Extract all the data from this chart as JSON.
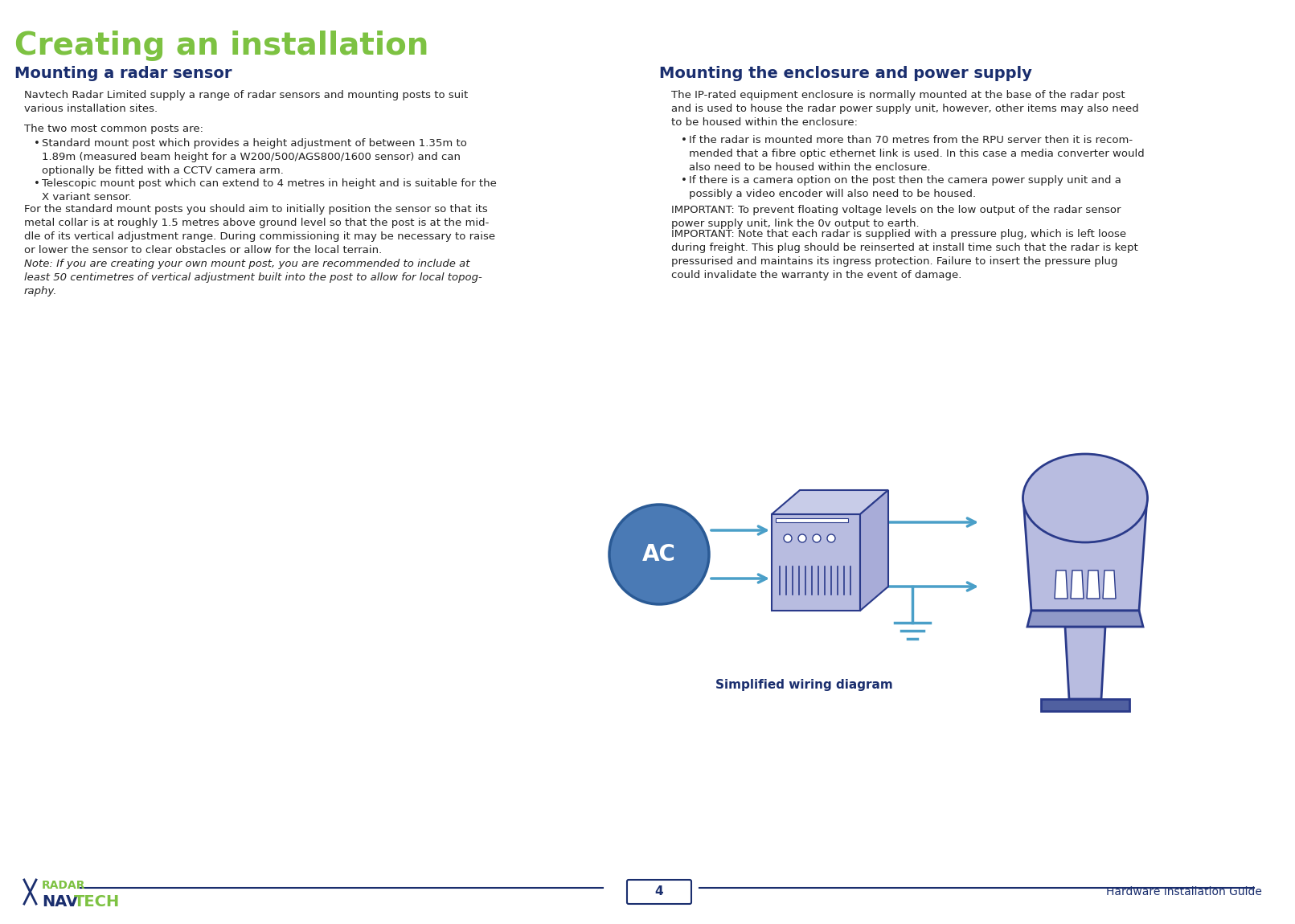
{
  "title": "Creating an installation",
  "title_color": "#7dc242",
  "title_fontsize": 28,
  "heading1": "Mounting a radar sensor",
  "heading2": "Mounting the enclosure and power supply",
  "heading_color": "#1a2e6e",
  "heading_fontsize": 14,
  "body_color": "#222222",
  "body_fontsize": 9.5,
  "bg_color": "#ffffff",
  "footer_line_color": "#1a2e6e",
  "footer_page_num": "4",
  "footer_right_text": "Hardware Installation Guide",
  "footer_color": "#1a2e6e",
  "diagram_caption": "Simplified wiring diagram",
  "diagram_caption_color": "#1a2e6e",
  "diagram_caption_fontsize": 11,
  "left_col_text": [
    "Navtech Radar Limited supply a range of radar sensors and mounting posts to suit various installation sites.",
    "The two most common posts are:",
    "•  Standard mount post which provides a height adjustment of between 1.35m to 1.89m (measured beam height for a W200/500/AGS800/1600 sensor) and can optionally be fitted with a CCTV camera arm.",
    "•  Telescopic mount post which can extend to 4 metres in height and is suitable for the X variant sensor.",
    "For the standard mount posts you should aim to initially position the sensor so that its metal collar is at roughly 1.5 metres above ground level so that the post is at the mid-dle of its vertical adjustment range. During commissioning it may be necessary to raise or lower the sensor to clear obstacles or allow for the local terrain.",
    "Note: If you are creating your own mount post, you are recommended to include at least 50 centimetres of vertical adjustment built into the post to allow for local topog-raphy."
  ],
  "right_col_text": [
    "The IP-rated equipment enclosure is normally mounted at the base of the radar post and is used to house the radar power supply unit, however, other items may also need to be housed within the enclosure:",
    "•  If the radar is mounted more than 70 metres from the RPU server then it is recom-mended that a fibre optic ethernet link is used. In this case a media converter would also need to be housed within the enclosure.",
    "•  If there is a camera option on the post then the camera power supply unit and a possibly a video encoder will also need to be housed.",
    "IMPORTANT: To prevent floating voltage levels on the low output of the radar sensor power supply unit, link the 0v output to earth.",
    "IMPORTANT: Note that each radar is supplied with a pressure plug, which is left loose during freight. This plug should be reinserted at install time such that the radar is kept pressurised and maintains its ingress protection. Failure to insert the pressure plug could invalidate the warranty in the event of damage."
  ],
  "ac_circle_color": "#4a7ab5",
  "ac_circle_edge_color": "#2a5a95",
  "ac_text_color": "#ffffff",
  "arrow_color": "#4a9fc8",
  "psu_fill_color": "#b8bce0",
  "psu_edge_color": "#2a3a8a",
  "radar_fill_color": "#b8bce0",
  "radar_edge_color": "#2a3a8a",
  "ground_color": "#4a9fc8",
  "navtech_nav_color": "#1a2e6e",
  "navtech_tech_color": "#7dc242",
  "navtech_radar_color": "#7dc242"
}
